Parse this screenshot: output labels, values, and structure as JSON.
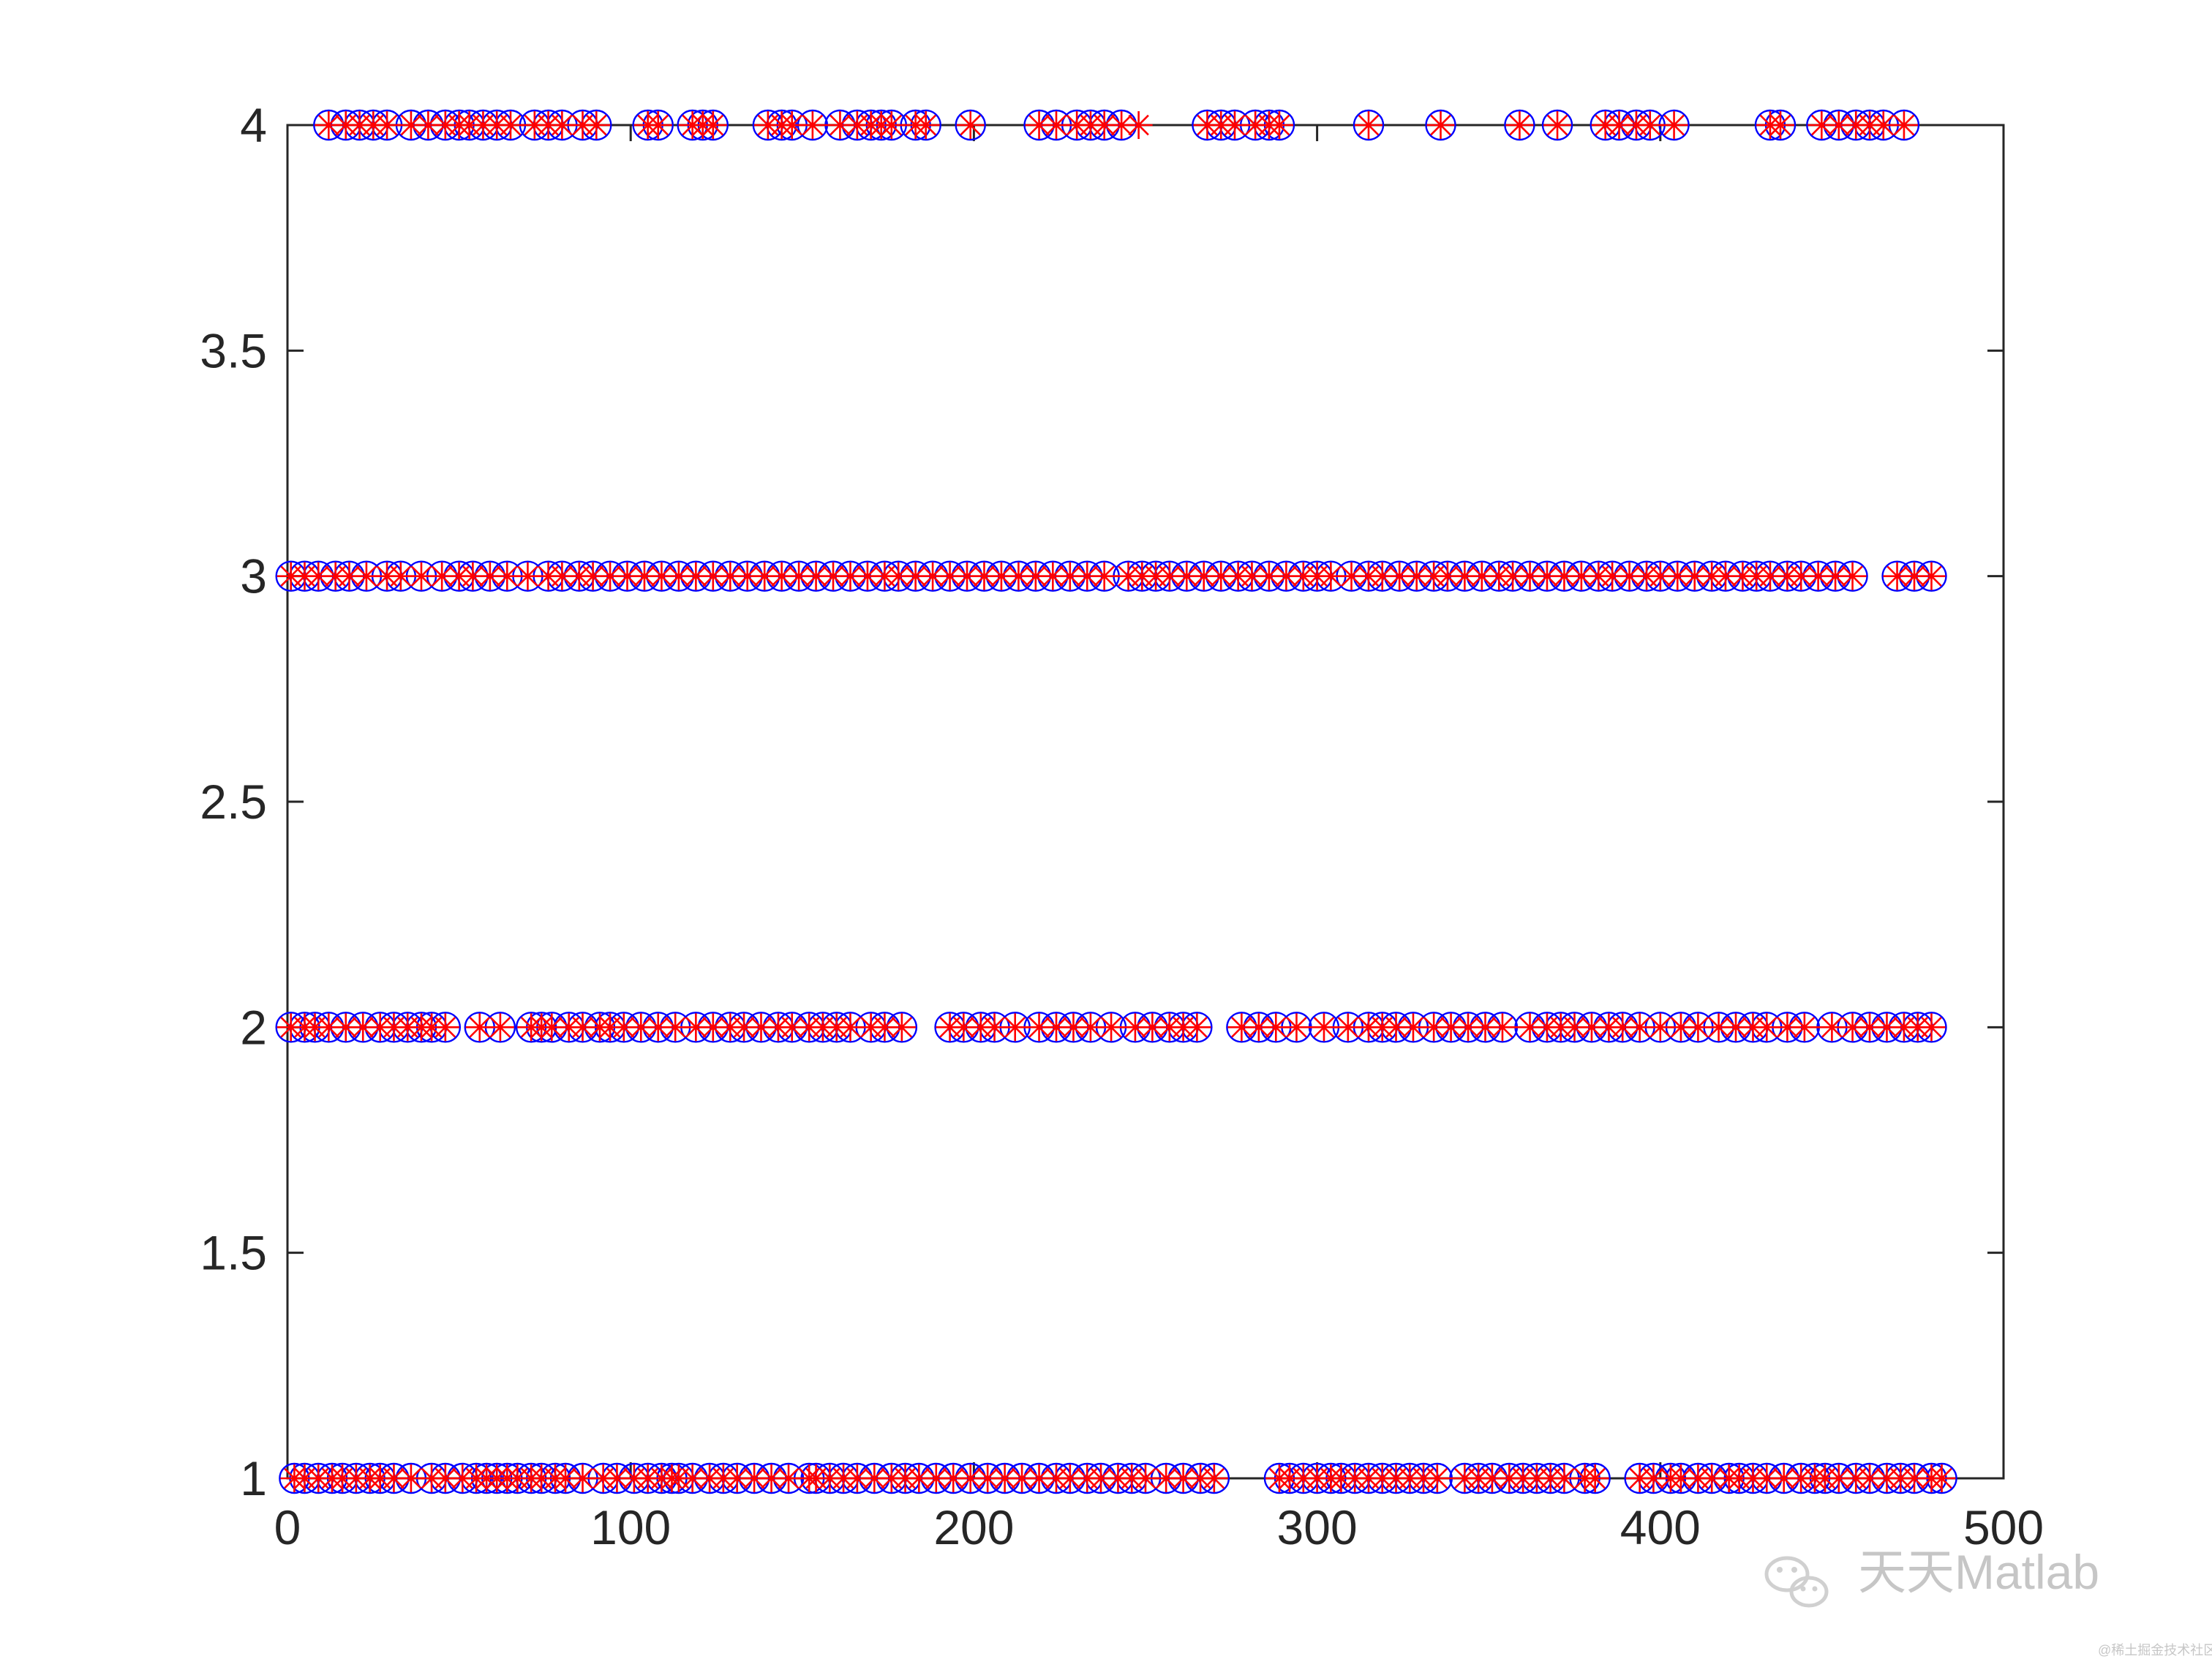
{
  "chart_data": {
    "type": "scatter",
    "xlim": [
      0,
      500
    ],
    "ylim": [
      1,
      4
    ],
    "x_ticks": [
      "0",
      "100",
      "200",
      "300",
      "400",
      "500"
    ],
    "y_ticks": [
      "1",
      "1.5",
      "2",
      "2.5",
      "3",
      "3.5",
      "4"
    ],
    "grid": false,
    "legend": "none",
    "series": [
      {
        "marker": "circle",
        "color": "#0000ff",
        "rows": [
          {
            "y": 1,
            "x": [
              2,
              5,
              9,
              13,
              16,
              20,
              24,
              27,
              31,
              36,
              42,
              46,
              51,
              55,
              58,
              61,
              64,
              67,
              71,
              74,
              78,
              81,
              86,
              92,
              96,
              101,
              105,
              109,
              112,
              114,
              118,
              123,
              127,
              131,
              136,
              141,
              146,
              152,
              154,
              158,
              162,
              166,
              171,
              176,
              180,
              184,
              189,
              194,
              199,
              204,
              209,
              214,
              219,
              224,
              228,
              233,
              237,
              242,
              246,
              250,
              256,
              261,
              266,
              270,
              289,
              292,
              296,
              300,
              304,
              307,
              311,
              315,
              319,
              323,
              327,
              331,
              335,
              343,
              347,
              351,
              356,
              360,
              364,
              368,
              372,
              378,
              381,
              394,
              398,
              403,
              406,
              411,
              415,
              420,
              423,
              427,
              431,
              436,
              441,
              445,
              448,
              452,
              457,
              461,
              466,
              470,
              474,
              479,
              482
            ]
          },
          {
            "y": 2,
            "x": [
              1,
              5,
              8,
              12,
              17,
              22,
              27,
              31,
              35,
              39,
              42,
              46,
              56,
              62,
              71,
              74,
              77,
              82,
              86,
              91,
              94,
              98,
              103,
              108,
              113,
              119,
              124,
              129,
              133,
              138,
              143,
              147,
              152,
              156,
              160,
              164,
              170,
              174,
              179,
              193,
              197,
              202,
              206,
              212,
              219,
              224,
              229,
              234,
              240,
              247,
              252,
              257,
              261,
              265,
              278,
              283,
              288,
              294,
              302,
              309,
              315,
              319,
              323,
              328,
              334,
              339,
              344,
              349,
              354,
              362,
              367,
              371,
              375,
              380,
              385,
              389,
              394,
              400,
              406,
              411,
              417,
              422,
              427,
              431,
              437,
              442,
              450,
              456,
              461,
              466,
              471,
              475,
              479
            ]
          },
          {
            "y": 3,
            "x": [
              1,
              5,
              9,
              14,
              18,
              23,
              29,
              33,
              39,
              45,
              50,
              54,
              59,
              64,
              70,
              76,
              80,
              85,
              89,
              94,
              99,
              104,
              109,
              114,
              119,
              124,
              129,
              134,
              139,
              144,
              149,
              154,
              159,
              164,
              169,
              174,
              178,
              183,
              188,
              193,
              198,
              203,
              208,
              213,
              218,
              223,
              228,
              233,
              238,
              245,
              249,
              253,
              257,
              262,
              267,
              272,
              277,
              281,
              286,
              291,
              296,
              300,
              304,
              310,
              315,
              319,
              324,
              329,
              334,
              338,
              343,
              348,
              353,
              357,
              362,
              367,
              372,
              377,
              382,
              386,
              391,
              396,
              400,
              405,
              410,
              415,
              419,
              424,
              428,
              432,
              437,
              441,
              446,
              451,
              456,
              469,
              474,
              479
            ]
          },
          {
            "y": 4,
            "x": [
              12,
              17,
              21,
              25,
              29,
              36,
              41,
              46,
              50,
              53,
              57,
              61,
              65,
              72,
              76,
              80,
              86,
              90,
              105,
              108,
              118,
              121,
              124,
              140,
              144,
              147,
              153,
              161,
              166,
              170,
              173,
              176,
              183,
              186,
              199,
              219,
              224,
              230,
              234,
              238,
              243,
              268,
              272,
              276,
              282,
              286,
              289,
              315,
              336,
              359,
              370,
              384,
              388,
              393,
              397,
              404,
              432,
              435,
              447,
              452,
              457,
              461,
              465,
              471
            ]
          }
        ]
      },
      {
        "marker": "asterisk",
        "color": "#ff0000",
        "rows": [
          {
            "y": 1,
            "x": [
              2,
              5,
              9,
              13,
              16,
              20,
              24,
              27,
              31,
              36,
              42,
              46,
              51,
              55,
              58,
              61,
              64,
              67,
              71,
              74,
              78,
              81,
              86,
              92,
              96,
              101,
              105,
              109,
              112,
              114,
              118,
              123,
              127,
              131,
              136,
              141,
              146,
              152,
              154,
              158,
              162,
              166,
              171,
              176,
              180,
              184,
              189,
              194,
              199,
              204,
              209,
              214,
              219,
              224,
              228,
              233,
              237,
              242,
              246,
              250,
              256,
              261,
              266,
              270,
              289,
              292,
              296,
              300,
              304,
              307,
              311,
              315,
              319,
              323,
              327,
              331,
              335,
              343,
              347,
              351,
              356,
              360,
              364,
              368,
              372,
              378,
              381,
              394,
              398,
              403,
              406,
              411,
              415,
              420,
              423,
              427,
              431,
              436,
              441,
              445,
              448,
              452,
              457,
              461,
              466,
              470,
              474,
              479,
              482
            ]
          },
          {
            "y": 2,
            "x": [
              1,
              5,
              8,
              12,
              17,
              22,
              27,
              31,
              35,
              39,
              42,
              46,
              56,
              62,
              71,
              74,
              77,
              82,
              86,
              91,
              94,
              98,
              103,
              108,
              113,
              119,
              124,
              129,
              133,
              138,
              143,
              147,
              152,
              156,
              160,
              164,
              170,
              174,
              179,
              193,
              197,
              202,
              206,
              212,
              219,
              224,
              229,
              234,
              240,
              247,
              252,
              257,
              261,
              265,
              278,
              283,
              288,
              294,
              302,
              309,
              315,
              319,
              323,
              328,
              334,
              339,
              344,
              349,
              354,
              362,
              367,
              371,
              375,
              380,
              385,
              389,
              394,
              400,
              406,
              411,
              417,
              422,
              427,
              431,
              437,
              442,
              450,
              456,
              461,
              466,
              471,
              475,
              479
            ]
          },
          {
            "y": 3,
            "x": [
              1,
              5,
              9,
              14,
              18,
              23,
              29,
              33,
              39,
              45,
              50,
              54,
              59,
              64,
              70,
              76,
              80,
              85,
              89,
              94,
              99,
              104,
              109,
              114,
              119,
              124,
              129,
              134,
              139,
              144,
              149,
              154,
              159,
              164,
              169,
              174,
              178,
              183,
              188,
              193,
              198,
              203,
              208,
              213,
              218,
              223,
              228,
              233,
              238,
              245,
              249,
              253,
              257,
              262,
              267,
              272,
              277,
              281,
              286,
              291,
              296,
              300,
              304,
              310,
              315,
              319,
              324,
              329,
              334,
              338,
              343,
              348,
              353,
              357,
              362,
              367,
              372,
              377,
              382,
              386,
              391,
              396,
              400,
              405,
              410,
              415,
              419,
              424,
              428,
              432,
              437,
              441,
              446,
              451,
              456,
              469,
              474,
              479
            ]
          },
          {
            "y": 4,
            "x": [
              12,
              17,
              21,
              25,
              29,
              36,
              41,
              46,
              50,
              53,
              57,
              61,
              65,
              72,
              76,
              80,
              86,
              90,
              105,
              108,
              118,
              121,
              124,
              140,
              144,
              147,
              153,
              161,
              166,
              170,
              173,
              176,
              183,
              186,
              199,
              219,
              224,
              230,
              234,
              238,
              243,
              248,
              268,
              272,
              276,
              282,
              286,
              289,
              315,
              336,
              359,
              370,
              384,
              388,
              393,
              397,
              404,
              432,
              435,
              447,
              452,
              457,
              461,
              465,
              471
            ]
          }
        ]
      }
    ]
  },
  "watermark": {
    "text": "天天Matlab",
    "credit": "@稀土掘金技术社区",
    "icon": "wechat-logo-icon"
  }
}
